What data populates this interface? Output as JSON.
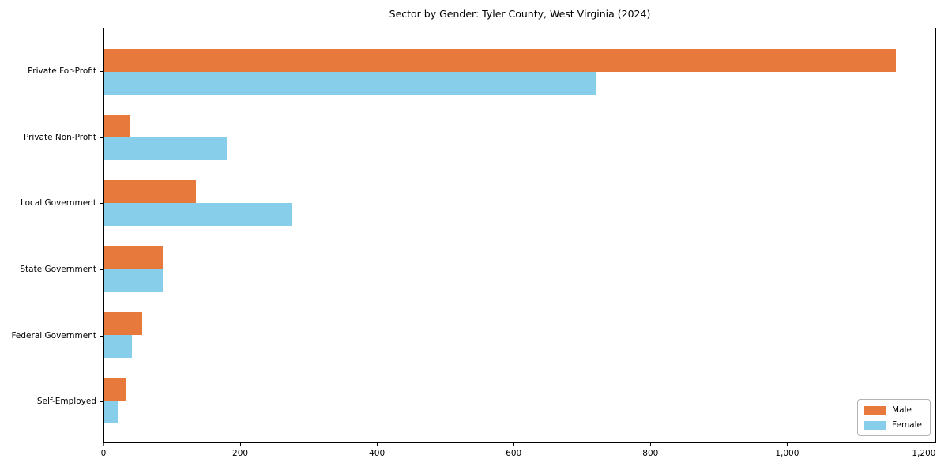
{
  "title": "Sector by Gender: Tyler County, West Virginia (2024)",
  "colors": {
    "male": "#e8793c",
    "female": "#87ceeb",
    "axis": "#000000",
    "legend_border": "#b3b3b3",
    "background": "#ffffff"
  },
  "chart_data": {
    "type": "bar",
    "orientation": "horizontal",
    "title": "Sector by Gender: Tyler County, West Virginia (2024)",
    "xlabel": "",
    "ylabel": "",
    "grid": false,
    "legend_position": "lower right",
    "categories": [
      "Private For-Profit",
      "Private Non-Profit",
      "Local Government",
      "State Government",
      "Federal Government",
      "Self-Employed"
    ],
    "series": [
      {
        "name": "Male",
        "color": "#e8793c",
        "values": [
          1160,
          37,
          134,
          86,
          56,
          31
        ]
      },
      {
        "name": "Female",
        "color": "#87ceeb",
        "values": [
          720,
          179,
          274,
          86,
          40,
          20
        ]
      }
    ],
    "xlim": [
      0,
      1218
    ],
    "x_ticks": [
      {
        "value": 0,
        "label": "0"
      },
      {
        "value": 200,
        "label": "200"
      },
      {
        "value": 400,
        "label": "400"
      },
      {
        "value": 600,
        "label": "600"
      },
      {
        "value": 800,
        "label": "800"
      },
      {
        "value": 1000,
        "label": "1,000"
      },
      {
        "value": 1200,
        "label": "1,200"
      }
    ]
  }
}
